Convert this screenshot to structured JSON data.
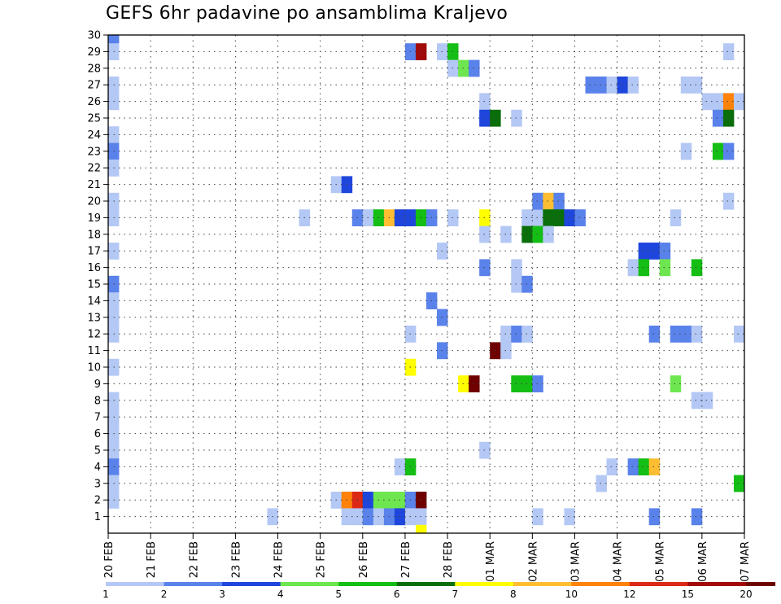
{
  "title": "GEFS 6hr padavine po ansamblima Kraljevo",
  "chart_data": {
    "type": "heatmap",
    "title": "GEFS 6hr padavine po ansamblima Kraljevo",
    "xlabel": "",
    "ylabel": "",
    "x_tick_labels": [
      "20 FEB",
      "21 FEB",
      "22 FEB",
      "23 FEB",
      "24 FEB",
      "25 FEB",
      "26 FEB",
      "27 FEB",
      "28 FEB",
      "01 MAR",
      "02 MAR",
      "03 MAR",
      "04 MAR",
      "05 MAR",
      "06 MAR",
      "07 MAR"
    ],
    "x_range_days": [
      0,
      15
    ],
    "steps_per_day": 4,
    "y_tick_labels": [
      "1",
      "2",
      "3",
      "4",
      "5",
      "6",
      "7",
      "8",
      "9",
      "10",
      "11",
      "12",
      "13",
      "14",
      "15",
      "16",
      "17",
      "18",
      "19",
      "20",
      "21",
      "22",
      "23",
      "24",
      "25",
      "26",
      "27",
      "28",
      "29",
      "30"
    ],
    "y_range": [
      0,
      30
    ],
    "grid": true,
    "legend": {
      "placement": "bottom",
      "levels": [
        "1",
        "2",
        "3",
        "4",
        "5",
        "6",
        "7",
        "8",
        "10",
        "12",
        "15",
        "20"
      ],
      "colors": [
        "#b4c8f5",
        "#5a82eb",
        "#1e46dc",
        "#6ee650",
        "#14be14",
        "#0a6e0a",
        "#ffff00",
        "#ffbe32",
        "#ff820a",
        "#dc2814",
        "#a00a0a",
        "#6e0000"
      ]
    },
    "cells": [
      [
        0,
        30,
        2
      ],
      [
        0,
        29,
        1
      ],
      [
        0,
        27,
        1
      ],
      [
        0,
        26,
        1
      ],
      [
        0,
        24,
        1
      ],
      [
        0,
        23,
        2
      ],
      [
        0,
        22,
        1
      ],
      [
        0,
        20,
        1
      ],
      [
        0,
        19,
        1
      ],
      [
        0,
        17,
        1
      ],
      [
        0,
        15,
        2
      ],
      [
        0,
        14,
        1
      ],
      [
        0,
        13,
        1
      ],
      [
        0,
        12,
        1
      ],
      [
        0,
        10,
        1
      ],
      [
        0,
        8,
        1
      ],
      [
        0,
        7,
        1
      ],
      [
        0,
        6,
        1
      ],
      [
        0,
        5,
        1
      ],
      [
        0,
        4,
        2
      ],
      [
        0,
        3,
        1
      ],
      [
        0,
        2,
        1
      ],
      [
        15,
        1,
        1
      ],
      [
        18,
        19,
        1
      ],
      [
        21,
        21,
        1
      ],
      [
        21,
        2,
        1
      ],
      [
        22,
        21,
        3
      ],
      [
        22,
        2,
        9
      ],
      [
        22,
        1,
        1
      ],
      [
        23,
        19,
        2
      ],
      [
        23,
        2,
        10
      ],
      [
        23,
        1,
        1
      ],
      [
        24,
        19,
        1
      ],
      [
        24,
        2,
        3
      ],
      [
        24,
        1,
        2
      ],
      [
        25,
        19,
        5
      ],
      [
        25,
        2,
        4
      ],
      [
        25,
        1,
        1
      ],
      [
        26,
        19,
        8
      ],
      [
        26,
        2,
        4
      ],
      [
        26,
        1,
        2
      ],
      [
        27,
        19,
        3
      ],
      [
        27,
        2,
        4
      ],
      [
        27,
        1,
        3
      ],
      [
        27,
        4,
        1
      ],
      [
        28,
        19,
        3
      ],
      [
        28,
        2,
        2
      ],
      [
        28,
        4,
        5
      ],
      [
        28,
        29,
        2
      ],
      [
        28,
        1,
        1
      ],
      [
        28,
        12,
        1
      ],
      [
        28,
        10,
        7
      ],
      [
        29,
        29,
        11
      ],
      [
        29,
        19,
        5
      ],
      [
        29,
        2,
        12
      ],
      [
        29,
        1,
        1
      ],
      [
        29,
        0,
        7
      ],
      [
        30,
        19,
        2
      ],
      [
        30,
        14,
        2
      ],
      [
        31,
        17,
        1
      ],
      [
        31,
        13,
        2
      ],
      [
        31,
        11,
        2
      ],
      [
        31,
        29,
        1
      ],
      [
        32,
        29,
        5
      ],
      [
        32,
        28,
        1
      ],
      [
        32,
        19,
        1
      ],
      [
        33,
        28,
        4
      ],
      [
        33,
        9,
        7
      ],
      [
        34,
        28,
        2
      ],
      [
        34,
        9,
        12
      ],
      [
        35,
        26,
        1
      ],
      [
        35,
        25,
        3
      ],
      [
        35,
        19,
        7
      ],
      [
        35,
        18,
        1
      ],
      [
        35,
        16,
        2
      ],
      [
        35,
        5,
        1
      ],
      [
        36,
        25,
        6
      ],
      [
        36,
        11,
        12
      ],
      [
        37,
        18,
        1
      ],
      [
        37,
        12,
        1
      ],
      [
        37,
        11,
        1
      ],
      [
        38,
        25,
        1
      ],
      [
        38,
        16,
        1
      ],
      [
        38,
        15,
        1
      ],
      [
        38,
        12,
        2
      ],
      [
        38,
        9,
        5
      ],
      [
        39,
        19,
        1
      ],
      [
        39,
        18,
        6
      ],
      [
        39,
        15,
        2
      ],
      [
        39,
        12,
        1
      ],
      [
        39,
        9,
        5
      ],
      [
        40,
        19,
        1
      ],
      [
        40,
        18,
        5
      ],
      [
        40,
        20,
        2
      ],
      [
        40,
        9,
        2
      ],
      [
        40,
        1,
        1
      ],
      [
        41,
        20,
        8
      ],
      [
        41,
        19,
        6
      ],
      [
        41,
        18,
        1
      ],
      [
        42,
        20,
        2
      ],
      [
        42,
        19,
        6
      ],
      [
        43,
        19,
        3
      ],
      [
        43,
        1,
        1
      ],
      [
        44,
        19,
        2
      ],
      [
        45,
        27,
        2
      ],
      [
        46,
        27,
        2
      ],
      [
        46,
        3,
        1
      ],
      [
        47,
        27,
        1
      ],
      [
        47,
        4,
        1
      ],
      [
        48,
        27,
        3
      ],
      [
        49,
        27,
        1
      ],
      [
        49,
        16,
        1
      ],
      [
        49,
        4,
        2
      ],
      [
        50,
        17,
        3
      ],
      [
        50,
        16,
        5
      ],
      [
        50,
        4,
        5
      ],
      [
        51,
        17,
        3
      ],
      [
        51,
        12,
        2
      ],
      [
        51,
        4,
        8
      ],
      [
        51,
        1,
        2
      ],
      [
        52,
        17,
        2
      ],
      [
        52,
        16,
        4
      ],
      [
        53,
        19,
        1
      ],
      [
        53,
        12,
        2
      ],
      [
        53,
        9,
        4
      ],
      [
        54,
        12,
        2
      ],
      [
        54,
        27,
        1
      ],
      [
        54,
        23,
        1
      ],
      [
        55,
        27,
        1
      ],
      [
        55,
        16,
        5
      ],
      [
        55,
        12,
        1
      ],
      [
        55,
        8,
        1
      ],
      [
        55,
        1,
        2
      ],
      [
        56,
        26,
        1
      ],
      [
        56,
        8,
        1
      ],
      [
        57,
        26,
        1
      ],
      [
        57,
        25,
        2
      ],
      [
        57,
        23,
        5
      ],
      [
        58,
        29,
        1
      ],
      [
        58,
        26,
        9
      ],
      [
        58,
        25,
        6
      ],
      [
        58,
        23,
        2
      ],
      [
        58,
        20,
        1
      ],
      [
        59,
        26,
        1
      ],
      [
        59,
        12,
        1
      ],
      [
        59,
        3,
        5
      ]
    ]
  }
}
